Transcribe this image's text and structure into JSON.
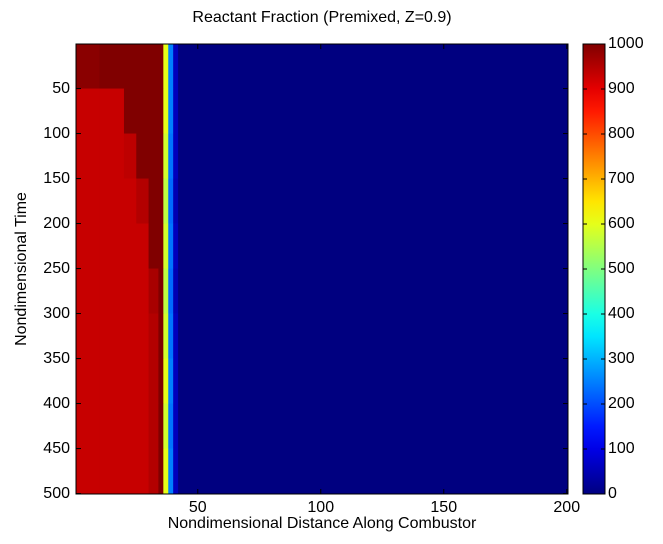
{
  "chart_data": {
    "type": "heatmap",
    "title": "Reactant Fraction (Premixed, Z=0.9)",
    "xlabel": "Nondimensional Distance Along Combustor",
    "ylabel": "Nondimensional Time",
    "colormap": "jet",
    "x_edges": [
      0.5,
      10,
      20,
      25,
      30,
      34,
      36,
      38,
      40,
      42,
      200.5
    ],
    "y_edges": [
      0.5,
      50,
      100,
      150,
      200,
      250,
      300,
      350,
      400,
      450,
      500.5
    ],
    "z": [
      [
        990,
        1000,
        1000,
        1000,
        1000,
        1000,
        600,
        250,
        60,
        0
      ],
      [
        930,
        930,
        1000,
        1000,
        1000,
        1000,
        600,
        250,
        60,
        0
      ],
      [
        930,
        930,
        940,
        1000,
        1000,
        1000,
        580,
        240,
        60,
        0
      ],
      [
        930,
        930,
        930,
        950,
        1000,
        1000,
        560,
        230,
        50,
        0
      ],
      [
        930,
        930,
        930,
        930,
        1000,
        1000,
        580,
        240,
        60,
        0
      ],
      [
        930,
        930,
        930,
        930,
        960,
        1000,
        560,
        230,
        50,
        0
      ],
      [
        930,
        930,
        930,
        930,
        950,
        1000,
        580,
        240,
        60,
        0
      ],
      [
        930,
        930,
        930,
        930,
        950,
        1000,
        600,
        250,
        60,
        0
      ],
      [
        930,
        930,
        930,
        930,
        950,
        1000,
        580,
        240,
        60,
        0
      ],
      [
        930,
        930,
        930,
        930,
        950,
        1000,
        600,
        250,
        60,
        0
      ]
    ],
    "xlim": [
      0.5,
      200.5
    ],
    "xticks": [
      50,
      100,
      150,
      200
    ],
    "ylim": [
      0.5,
      500.5
    ],
    "yticks": [
      50,
      100,
      150,
      200,
      250,
      300,
      350,
      400,
      450,
      500
    ],
    "y_reversed": true,
    "clim": [
      0,
      1000
    ],
    "cticks": [
      0,
      100,
      200,
      300,
      400,
      500,
      600,
      700,
      800,
      900,
      1000
    ]
  }
}
